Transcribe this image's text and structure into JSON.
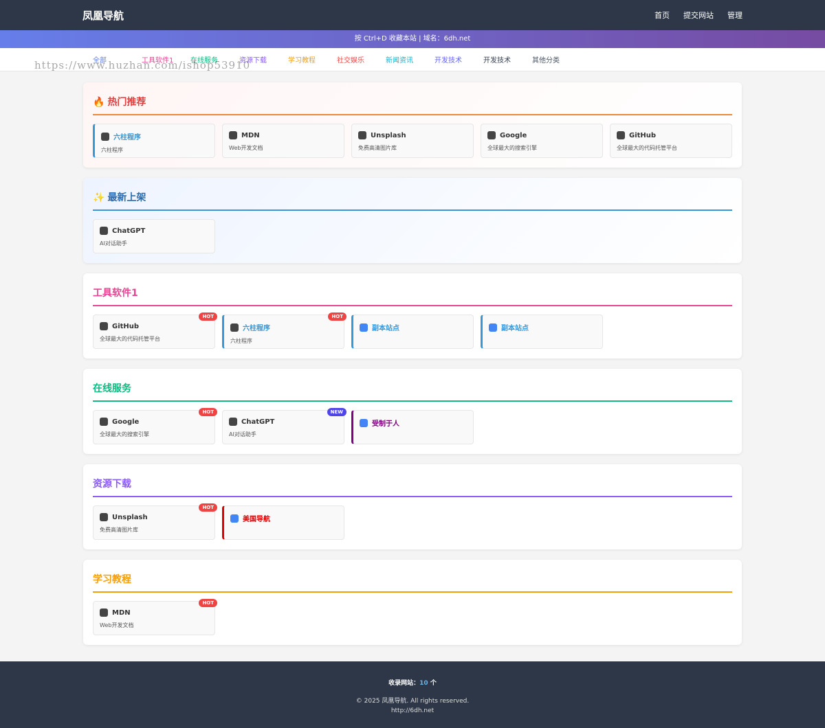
{
  "header": {
    "logo": "凤凰导航",
    "nav": [
      "首页",
      "提交网站",
      "管理"
    ]
  },
  "banner": "按 Ctrl+D 收藏本站 | 域名：6dh.net",
  "categories": [
    {
      "label": "全部",
      "color": "#667eea"
    },
    {
      "label": "工具软件1",
      "color": "#e84393"
    },
    {
      "label": "在线服务",
      "color": "#10b981"
    },
    {
      "label": "资源下载",
      "color": "#8b5cf6"
    },
    {
      "label": "学习教程",
      "color": "#f59e0b"
    },
    {
      "label": "社交娱乐",
      "color": "#ef4444"
    },
    {
      "label": "新闻资讯",
      "color": "#06b6d4"
    },
    {
      "label": "开发技术",
      "color": "#6366f1"
    },
    {
      "label": "开发技术",
      "color": "#374151"
    },
    {
      "label": "其他分类",
      "color": "#4b5563"
    }
  ],
  "watermark": "https://www.huzhan.com/ishop53910",
  "sections": [
    {
      "icon": "🔥",
      "title": "热门推荐",
      "color": "#e53e3e",
      "line": "#ed8936",
      "bg": "linear-gradient(135deg,#fff5f5,#ffffff)",
      "sites": [
        {
          "name": "六柱程序",
          "desc": "六柱程序",
          "accent": "#3498db"
        },
        {
          "name": "MDN",
          "desc": "Web开发文档"
        },
        {
          "name": "Unsplash",
          "desc": "免费高清图片库"
        },
        {
          "name": "Google",
          "desc": "全球最大的搜索引擎"
        },
        {
          "name": "GitHub",
          "desc": "全球最大的代码托管平台"
        }
      ]
    },
    {
      "icon": "✨",
      "title": "最新上架",
      "color": "#2b6cb0",
      "line": "#3498db",
      "bg": "linear-gradient(135deg,#eef4ff,#ffffff)",
      "sites": [
        {
          "name": "ChatGPT",
          "desc": "AI对话助手"
        }
      ]
    },
    {
      "title": "工具软件1",
      "color": "#e84393",
      "line": "#e84393",
      "bg": "#ffffff",
      "sites": [
        {
          "name": "GitHub",
          "desc": "全球最大的代码托管平台",
          "badge": "HOT"
        },
        {
          "name": "六柱程序",
          "desc": "六柱程序",
          "badge": "HOT",
          "accent": "#3498db"
        },
        {
          "name": "副本站点",
          "accent": "#3498db"
        },
        {
          "name": "副本站点",
          "accent": "#3498db"
        }
      ]
    },
    {
      "title": "在线服务",
      "color": "#10b981",
      "line": "#10b981",
      "bg": "#ffffff",
      "sites": [
        {
          "name": "Google",
          "desc": "全球最大的搜索引擎",
          "badge": "HOT"
        },
        {
          "name": "ChatGPT",
          "desc": "AI对话助手",
          "badge": "NEW"
        },
        {
          "name": "受制于人",
          "accent": "#800080"
        }
      ]
    },
    {
      "title": "资源下载",
      "color": "#8b5cf6",
      "line": "#8b5cf6",
      "bg": "#ffffff",
      "sites": [
        {
          "name": "Unsplash",
          "desc": "免费高清图片库",
          "badge": "HOT"
        },
        {
          "name": "美国导航",
          "accent": "#e00000"
        }
      ]
    },
    {
      "title": "学习教程",
      "color": "#f59e0b",
      "line": "#f59e0b",
      "bg": "#ffffff",
      "sites": [
        {
          "name": "MDN",
          "desc": "Web开发文档",
          "badge": "HOT"
        }
      ]
    }
  ],
  "footer": {
    "count_label": "收录网站：",
    "count": 10,
    "count_unit": "个",
    "copyright": "© 2025 凤凰导航. All rights reserved.",
    "url": "http://6dh.net"
  }
}
